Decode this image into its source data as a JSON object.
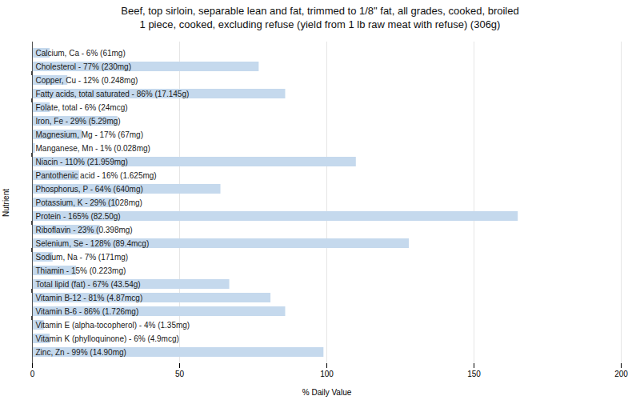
{
  "chart_data": {
    "type": "bar",
    "orientation": "horizontal",
    "title": "Beef, top sirloin, separable lean and fat, trimmed to 1/8\" fat, all grades, cooked, broiled\n1 piece, cooked, excluding refuse (yield from 1 lb raw meat with refuse) (306g)",
    "xlabel": "% Daily Value",
    "ylabel": "Nutrient",
    "categories": [
      "Calcium, Ca - 6% (61mg)",
      "Cholesterol - 77% (230mg)",
      "Copper, Cu - 12% (0.248mg)",
      "Fatty acids, total saturated - 86% (17.145g)",
      "Folate, total - 6% (24mcg)",
      "Iron, Fe - 29% (5.29mg)",
      "Magnesium, Mg - 17% (67mg)",
      "Manganese, Mn - 1% (0.028mg)",
      "Niacin - 110% (21.959mg)",
      "Pantothenic acid - 16% (1.625mg)",
      "Phosphorus, P - 64% (640mg)",
      "Potassium, K - 29% (1028mg)",
      "Protein - 165% (82.50g)",
      "Riboflavin - 23% (0.398mg)",
      "Selenium, Se - 128% (89.4mcg)",
      "Sodium, Na - 7% (171mg)",
      "Thiamin - 15% (0.223mg)",
      "Total lipid (fat) - 67% (43.54g)",
      "Vitamin B-12 - 81% (4.87mcg)",
      "Vitamin B-6 - 86% (1.726mg)",
      "Vitamin E (alpha-tocopherol) - 4% (1.35mg)",
      "Vitamin K (phylloquinone) - 6% (4.9mcg)",
      "Zinc, Zn - 99% (14.90mg)"
    ],
    "values": [
      6,
      77,
      12,
      86,
      6,
      29,
      17,
      1,
      110,
      16,
      64,
      29,
      165,
      23,
      128,
      7,
      15,
      67,
      81,
      86,
      4,
      6,
      99
    ],
    "color": "#c5d9ed",
    "xlim": [
      0,
      200
    ],
    "xticks": [
      0,
      50,
      100,
      150,
      200
    ],
    "grid": true,
    "tick_labels": "x",
    "group_separators_after": [
      1,
      3,
      7,
      12,
      14,
      17,
      19
    ]
  }
}
